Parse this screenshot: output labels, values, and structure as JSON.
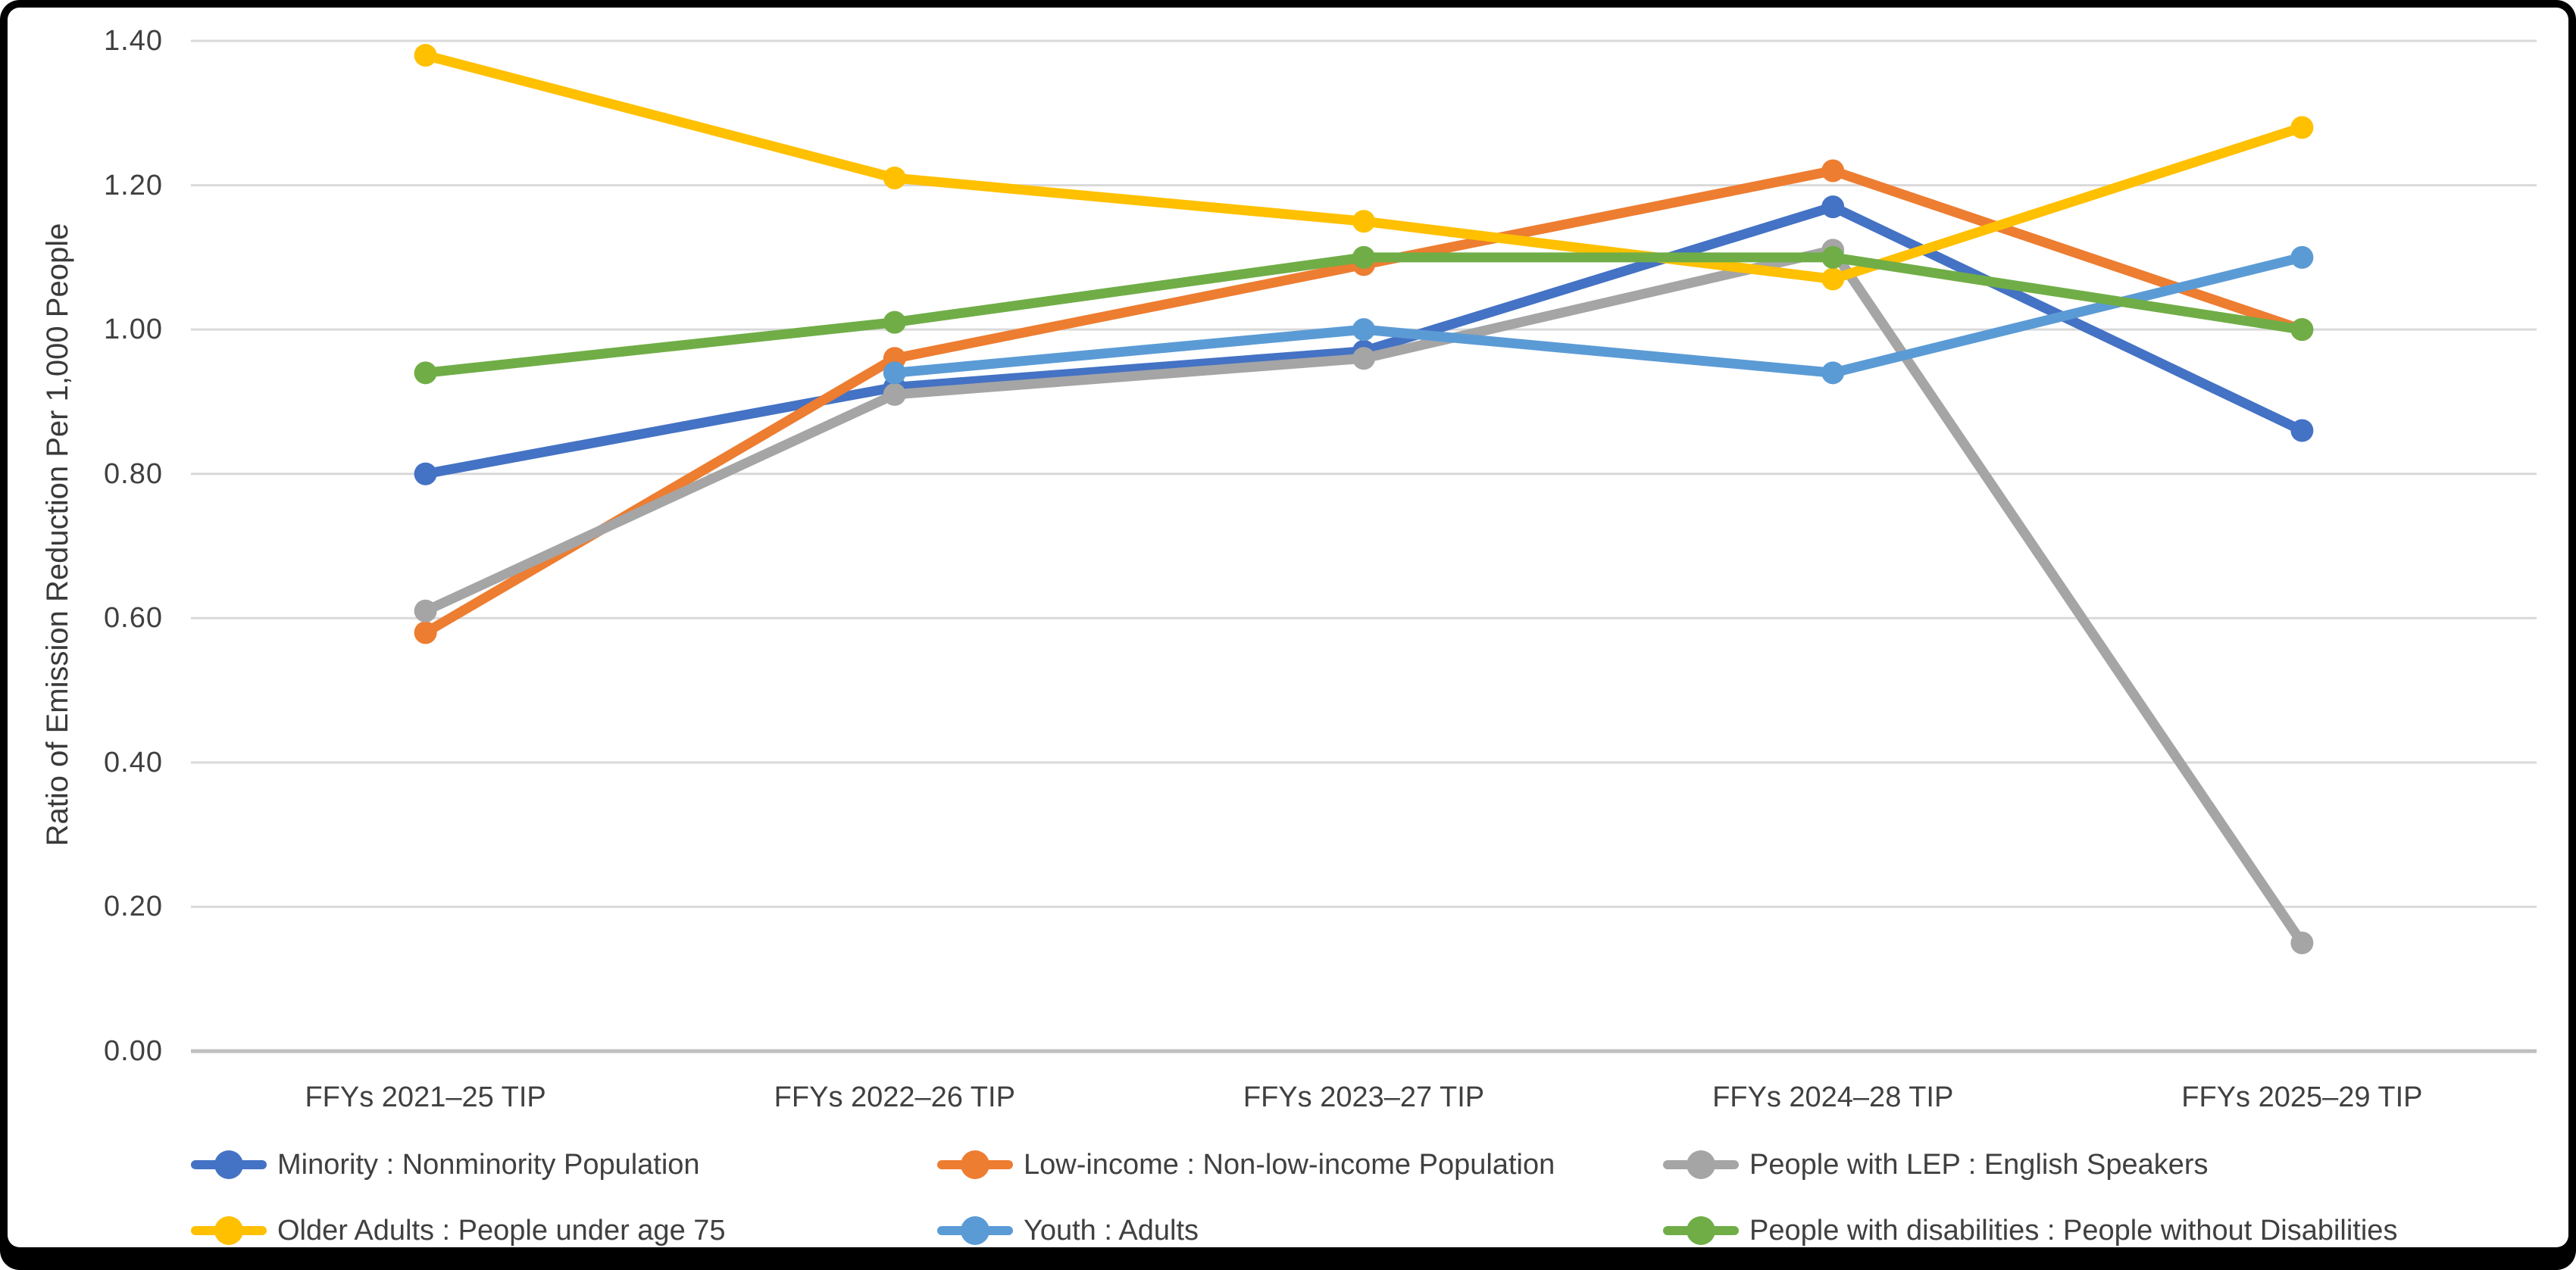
{
  "chart_data": {
    "type": "line",
    "title": "",
    "xlabel": "",
    "ylabel": "Ratio of Emission Reduction Per 1,000 People",
    "ylim": [
      0.0,
      1.4
    ],
    "ytick_step": 0.2,
    "ytick_labels": [
      "0.00",
      "0.20",
      "0.40",
      "0.60",
      "0.80",
      "1.00",
      "1.20",
      "1.40"
    ],
    "grid": "horizontal",
    "legend_position": "bottom",
    "axis_color": "#BFBFBF",
    "gridline_color": "#D9D9D9",
    "categories": [
      "FFYs 2021–25 TIP",
      "FFYs 2022–26 TIP",
      "FFYs 2023–27 TIP",
      "FFYs 2024–28 TIP",
      "FFYs 2025–29 TIP"
    ],
    "series": [
      {
        "name": "Minority : Nonminority Population",
        "color": "#4472C4",
        "values": [
          0.8,
          0.92,
          0.97,
          1.17,
          0.86
        ]
      },
      {
        "name": "Low-income : Non-low-income Population",
        "color": "#ED7D31",
        "values": [
          0.58,
          0.96,
          1.09,
          1.22,
          1.0
        ]
      },
      {
        "name": "People with LEP : English Speakers",
        "color": "#A5A5A5",
        "values": [
          0.61,
          0.91,
          0.96,
          1.11,
          0.15
        ]
      },
      {
        "name": "Older Adults : People under age 75",
        "color": "#FFC000",
        "values": [
          1.38,
          1.21,
          1.15,
          1.07,
          1.28
        ]
      },
      {
        "name": "Youth : Adults",
        "color": "#5B9BD5",
        "values": [
          null,
          0.94,
          1.0,
          0.94,
          1.1
        ]
      },
      {
        "name": "People with disabilities : People without Disabilities",
        "color": "#70AD47",
        "values": [
          0.94,
          1.01,
          1.1,
          1.1,
          1.0
        ]
      }
    ]
  }
}
